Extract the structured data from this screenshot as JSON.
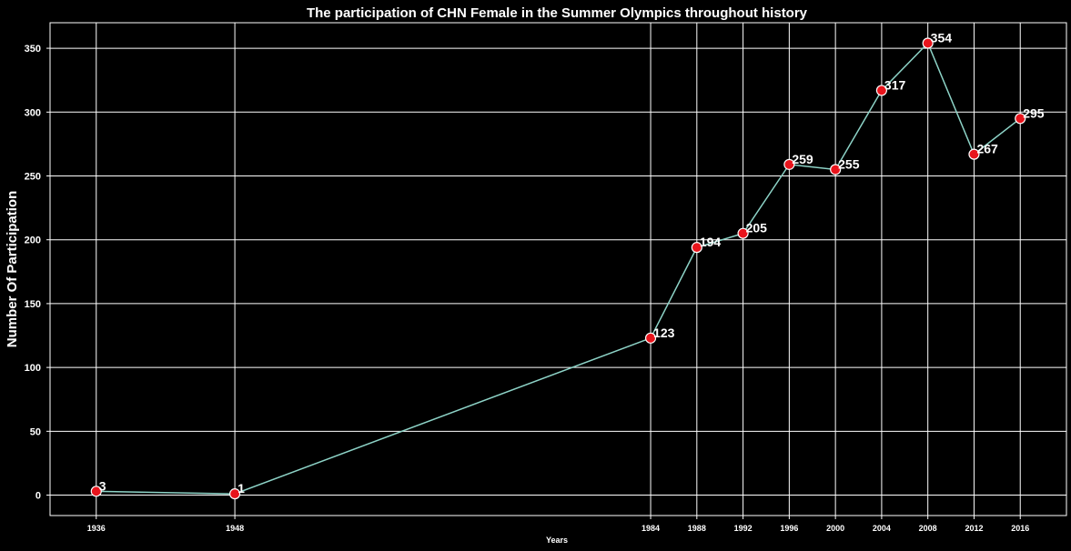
{
  "chart_data": {
    "type": "line",
    "title": "The participation of CHN Female in the Summer Olympics throughout history",
    "xlabel": "Years",
    "ylabel": "Number Of Participation",
    "x": [
      1936,
      1948,
      1984,
      1988,
      1992,
      1996,
      2000,
      2004,
      2008,
      2012,
      2016
    ],
    "values": [
      3,
      1,
      123,
      194,
      205,
      259,
      255,
      317,
      354,
      267,
      295
    ],
    "xlim": [
      1932,
      2020
    ],
    "ylim": [
      -16,
      370
    ],
    "yticks": [
      0,
      50,
      100,
      150,
      200,
      250,
      300,
      350
    ],
    "grid": true,
    "line_color": "#8dd3c7",
    "marker_color": "#e8141c",
    "marker_edge_color": "#ffffff",
    "background_color": "#000000"
  }
}
